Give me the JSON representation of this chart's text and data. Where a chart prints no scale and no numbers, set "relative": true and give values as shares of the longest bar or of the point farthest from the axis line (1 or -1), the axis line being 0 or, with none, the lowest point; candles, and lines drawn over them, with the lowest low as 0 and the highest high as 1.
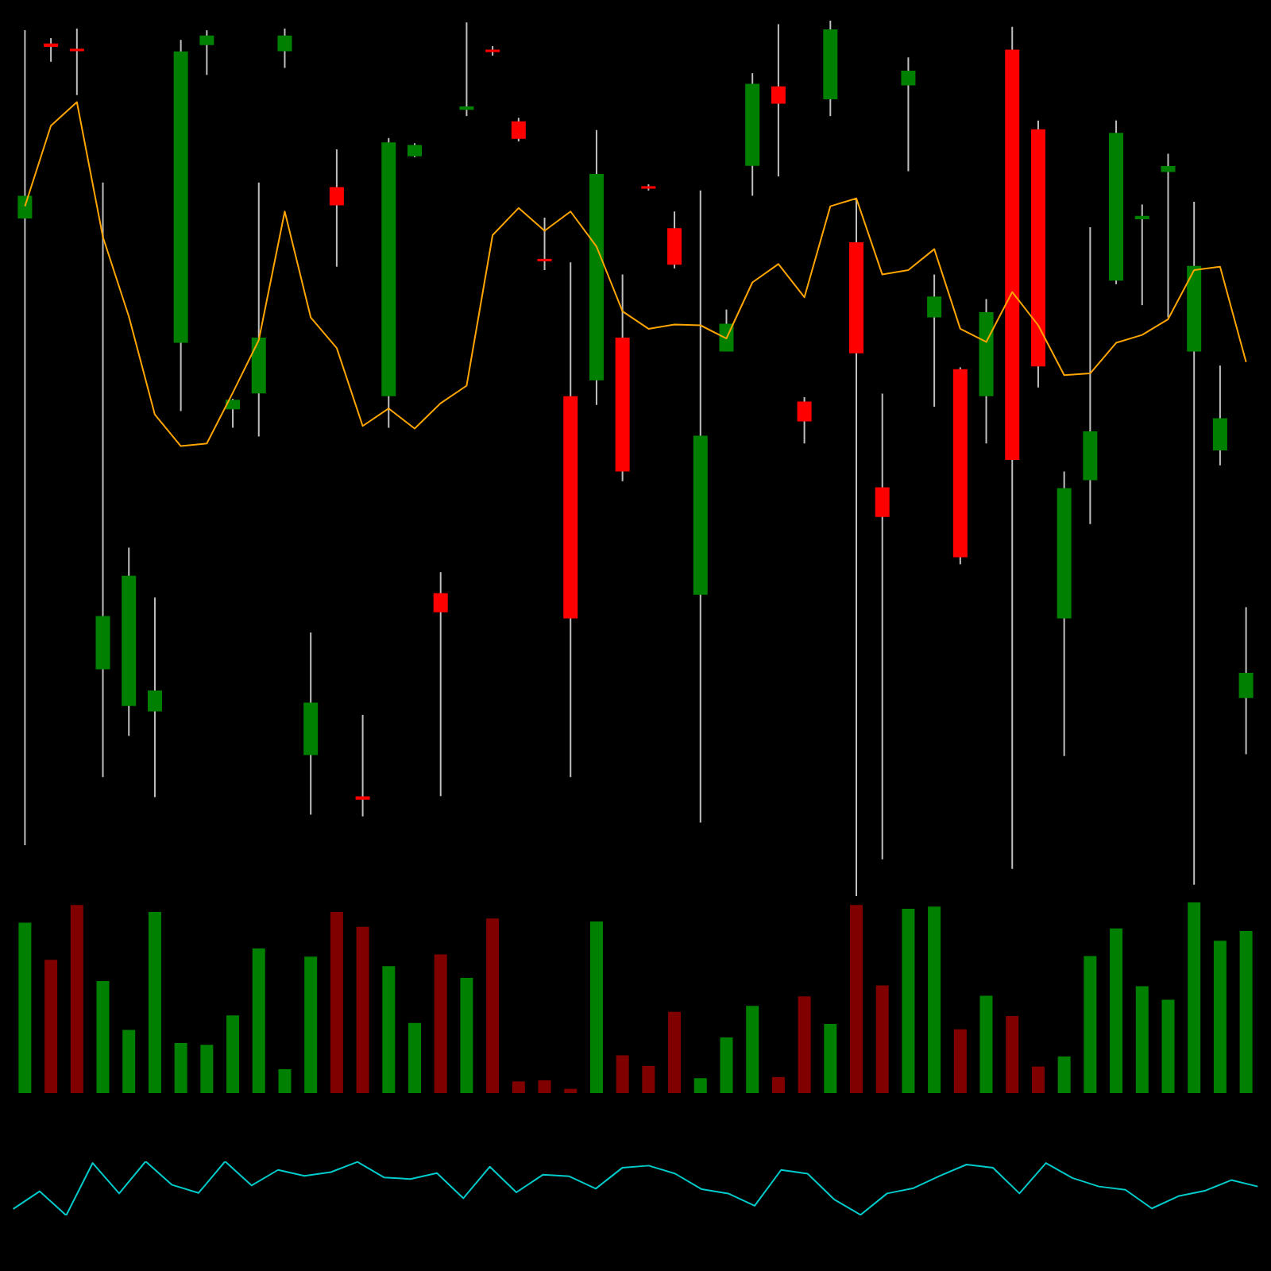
{
  "chart_data": [
    {
      "type": "candlestick",
      "relative": true,
      "categories": [
        null,
        null,
        null,
        null,
        null,
        null,
        null,
        null,
        null,
        null,
        null,
        null,
        null,
        null,
        null,
        null,
        null,
        null,
        null,
        null,
        null,
        null,
        null,
        null,
        null,
        null,
        null,
        null,
        null,
        null,
        null,
        null,
        null,
        null,
        null,
        null,
        null,
        null,
        null,
        null,
        null,
        null,
        null,
        null,
        null,
        null,
        null,
        null
      ],
      "ohlc": [
        [
          0.775,
          0.989,
          0.058,
          0.799
        ],
        [
          0.973,
          0.98,
          0.953,
          0.971
        ],
        [
          0.967,
          0.991,
          0.915,
          0.966
        ],
        [
          0.26,
          0.815,
          0.136,
          0.319
        ],
        [
          0.218,
          0.398,
          0.183,
          0.365
        ],
        [
          0.212,
          0.341,
          0.113,
          0.234
        ],
        [
          0.633,
          0.978,
          0.554,
          0.964
        ],
        [
          0.973,
          0.989,
          0.938,
          0.982
        ],
        [
          0.557,
          0.568,
          0.535,
          0.566
        ],
        [
          0.575,
          0.815,
          0.525,
          0.637
        ],
        [
          0.966,
          0.991,
          0.946,
          0.982
        ],
        [
          0.162,
          0.301,
          0.093,
          0.22
        ],
        [
          0.809,
          0.853,
          0.719,
          0.79
        ],
        [
          0.113,
          0.207,
          0.091,
          0.111
        ],
        [
          0.572,
          0.866,
          0.535,
          0.86
        ],
        [
          0.846,
          0.86,
          0.844,
          0.857
        ],
        [
          0.345,
          0.37,
          0.114,
          0.325
        ],
        [
          0.899,
          0.998,
          0.891,
          0.901
        ],
        [
          0.966,
          0.971,
          0.96,
          0.965
        ],
        [
          0.884,
          0.889,
          0.862,
          0.866
        ],
        [
          0.727,
          0.775,
          0.715,
          0.726
        ],
        [
          0.57,
          0.724,
          0.136,
          0.318
        ],
        [
          0.59,
          0.875,
          0.561,
          0.824
        ],
        [
          0.637,
          0.71,
          0.474,
          0.486
        ],
        [
          0.81,
          0.813,
          0.806,
          0.809
        ],
        [
          0.762,
          0.782,
          0.717,
          0.722
        ],
        [
          0.345,
          0.806,
          0.084,
          0.525
        ],
        [
          0.623,
          0.67,
          0.623,
          0.653
        ],
        [
          0.835,
          0.94,
          0.8,
          0.927
        ],
        [
          0.924,
          0.996,
          0.822,
          0.906
        ],
        [
          0.564,
          0.57,
          0.517,
          0.543
        ],
        [
          0.911,
          1,
          0.891,
          0.989
        ],
        [
          0.746,
          0.797,
          0,
          0.621
        ],
        [
          0.466,
          0.574,
          0.042,
          0.434
        ],
        [
          0.927,
          0.958,
          0.828,
          0.942
        ],
        [
          0.662,
          0.71,
          0.559,
          0.684
        ],
        [
          0.601,
          0.604,
          0.379,
          0.388
        ],
        [
          0.572,
          0.682,
          0.517,
          0.666
        ],
        [
          0.966,
          0.993,
          0.031,
          0.499
        ],
        [
          0.875,
          0.886,
          0.581,
          0.606
        ],
        [
          0.318,
          0.485,
          0.16,
          0.465
        ],
        [
          0.476,
          0.764,
          0.425,
          0.53
        ],
        [
          0.704,
          0.886,
          0.699,
          0.871
        ],
        [
          0.774,
          0.79,
          0.675,
          0.776
        ],
        [
          0.828,
          0.848,
          0.661,
          0.833
        ],
        [
          0.623,
          0.793,
          0.013,
          0.719
        ],
        [
          0.51,
          0.606,
          0.492,
          0.545
        ],
        [
          0.227,
          0.33,
          0.162,
          0.254
        ]
      ],
      "colors": [
        "#008000",
        "#ff0000",
        "#ff0000",
        "#008000",
        "#008000",
        "#008000",
        "#008000",
        "#008000",
        "#008000",
        "#008000",
        "#008000",
        "#008000",
        "#ff0000",
        "#ff0000",
        "#008000",
        "#008000",
        "#ff0000",
        "#008000",
        "#ff0000",
        "#ff0000",
        "#ff0000",
        "#ff0000",
        "#008000",
        "#ff0000",
        "#ff0000",
        "#ff0000",
        "#008000",
        "#008000",
        "#008000",
        "#ff0000",
        "#ff0000",
        "#008000",
        "#ff0000",
        "#ff0000",
        "#008000",
        "#008000",
        "#ff0000",
        "#008000",
        "#ff0000",
        "#ff0000",
        "#008000",
        "#008000",
        "#008000",
        "#008000",
        "#008000",
        "#008000",
        "#008000",
        "#008000"
      ],
      "series": [
        {
          "type": "line",
          "color": "#ffa500",
          "values": [
            0.788,
            0.88,
            0.907,
            0.753,
            0.662,
            0.55,
            0.514,
            0.517,
            0.575,
            0.635,
            0.782,
            0.661,
            0.626,
            0.537,
            0.557,
            0.534,
            0.563,
            0.583,
            0.755,
            0.786,
            0.76,
            0.782,
            0.742,
            0.668,
            0.648,
            0.653,
            0.652,
            0.637,
            0.701,
            0.722,
            0.684,
            0.788,
            0.797,
            0.71,
            0.715,
            0.739,
            0.648,
            0.633,
            0.69,
            0.652,
            0.595,
            0.597,
            0.632,
            0.641,
            0.659,
            0.715,
            0.719,
            0.61
          ]
        }
      ]
    },
    {
      "type": "bar",
      "relative": true,
      "categories": [
        null,
        null,
        null,
        null,
        null,
        null,
        null,
        null,
        null,
        null,
        null,
        null,
        null,
        null,
        null,
        null,
        null,
        null,
        null,
        null,
        null,
        null,
        null,
        null,
        null,
        null,
        null,
        null,
        null,
        null,
        null,
        null,
        null,
        null,
        null,
        null,
        null,
        null,
        null,
        null,
        null,
        null,
        null,
        null,
        null,
        null,
        null,
        null
      ],
      "values": [
        0.894,
        0.699,
        0.986,
        0.588,
        0.331,
        0.95,
        0.262,
        0.253,
        0.407,
        0.758,
        0.125,
        0.716,
        0.95,
        0.872,
        0.666,
        0.368,
        0.727,
        0.604,
        0.916,
        0.061,
        0.067,
        0.022,
        0.9,
        0.198,
        0.142,
        0.426,
        0.078,
        0.292,
        0.457,
        0.084,
        0.507,
        0.362,
        0.986,
        0.565,
        0.967,
        0.978,
        0.334,
        0.51,
        0.404,
        0.139,
        0.192,
        0.719,
        0.864,
        0.56,
        0.49,
        1,
        0.799,
        0.85
      ],
      "colors": [
        "#008000",
        "#800000",
        "#800000",
        "#008000",
        "#008000",
        "#008000",
        "#008000",
        "#008000",
        "#008000",
        "#008000",
        "#008000",
        "#008000",
        "#800000",
        "#800000",
        "#008000",
        "#008000",
        "#800000",
        "#008000",
        "#800000",
        "#800000",
        "#800000",
        "#800000",
        "#008000",
        "#800000",
        "#800000",
        "#800000",
        "#008000",
        "#008000",
        "#008000",
        "#800000",
        "#800000",
        "#008000",
        "#800000",
        "#800000",
        "#008000",
        "#008000",
        "#800000",
        "#008000",
        "#800000",
        "#800000",
        "#008000",
        "#008000",
        "#008000",
        "#008000",
        "#008000",
        "#008000",
        "#008000",
        "#008000"
      ]
    },
    {
      "type": "line",
      "relative": true,
      "categories": [
        null,
        null,
        null,
        null,
        null,
        null,
        null,
        null,
        null,
        null,
        null,
        null,
        null,
        null,
        null,
        null,
        null,
        null,
        null,
        null,
        null,
        null,
        null,
        null,
        null,
        null,
        null,
        null,
        null,
        null,
        null,
        null,
        null,
        null,
        null,
        null,
        null,
        null,
        null,
        null,
        null,
        null,
        null,
        null,
        null,
        null,
        null,
        null
      ],
      "series": [
        {
          "color": "#00cccc",
          "values": [
            0.119,
            0.446,
            0,
            0.97,
            0.406,
            1,
            0.564,
            0.416,
            1,
            0.554,
            0.842,
            0.733,
            0.802,
            0.99,
            0.703,
            0.673,
            0.782,
            0.317,
            0.901,
            0.426,
            0.752,
            0.723,
            0.495,
            0.881,
            0.921,
            0.772,
            0.485,
            0.406,
            0.178,
            0.842,
            0.772,
            0.297,
            0.01,
            0.406,
            0.505,
            0.733,
            0.941,
            0.881,
            0.406,
            0.97,
            0.693,
            0.535,
            0.475,
            0.129,
            0.356,
            0.455,
            0.653,
            0.535
          ]
        }
      ]
    }
  ]
}
